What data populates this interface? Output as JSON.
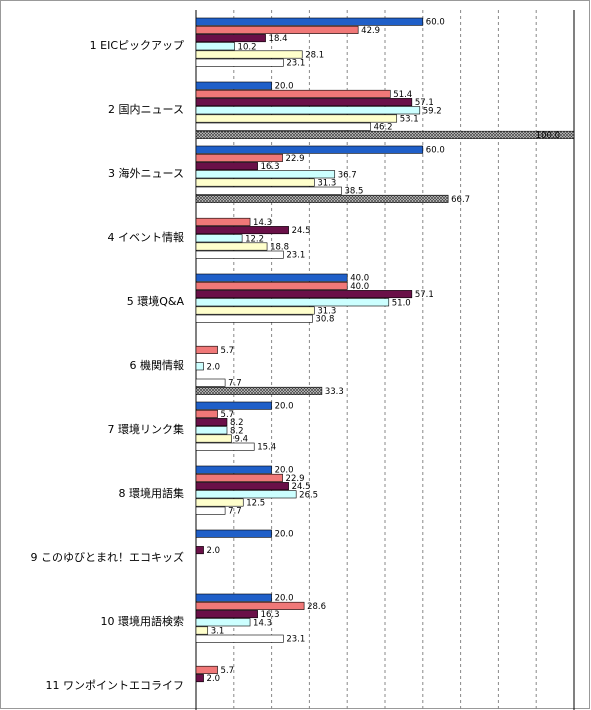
{
  "chart_data": {
    "type": "bar",
    "orientation": "horizontal",
    "categories": [
      "1 EICピックアップ",
      "2 国内ニュース",
      "3 海外ニュース",
      "4 イベント情報",
      "5 環境Q&A",
      "6 機関情報",
      "7 環境リンク集",
      "8 環境用語集",
      "9 このゆびとまれ！エコキッズ",
      "10 環境用語検索",
      "11 ワンポイントエコライフ"
    ],
    "series": [
      {
        "color": "#1f5fc8",
        "values": [
          60.0,
          20.0,
          60.0,
          null,
          40.0,
          null,
          20.0,
          20.0,
          20.0,
          20.0,
          null
        ],
        "value_labels": [
          "60.0",
          "20.0",
          "60.0",
          null,
          "40.0",
          null,
          "20.0",
          "20.0",
          "20.0",
          "20.0",
          null
        ]
      },
      {
        "color": "#f07878",
        "values": [
          42.9,
          51.4,
          22.9,
          14.3,
          40.0,
          5.7,
          5.7,
          22.9,
          null,
          28.6,
          5.7
        ],
        "value_labels": [
          "42.9",
          "51.4",
          "22.9",
          "14.3",
          "40.0",
          "5.7",
          "5.7",
          "22.9",
          null,
          "28.6",
          "5.7"
        ]
      },
      {
        "color": "#6a1048",
        "values": [
          18.4,
          57.1,
          16.3,
          24.5,
          57.1,
          null,
          8.2,
          24.5,
          2.0,
          16.3,
          2.0
        ],
        "value_labels": [
          "18.4",
          "57.1",
          "16.3",
          "24.5",
          "57.1",
          null,
          "8.2",
          "24.5",
          "2.0",
          "16.3",
          "2.0"
        ]
      },
      {
        "color": "#ccffff",
        "values": [
          10.2,
          59.2,
          36.7,
          12.2,
          51.0,
          2.0,
          8.2,
          26.5,
          null,
          14.3,
          null
        ],
        "value_labels": [
          "10.2",
          "59.2",
          "36.7",
          "12.2",
          "51.0",
          "2.0",
          "8.2",
          "26.5",
          null,
          "14.3",
          null
        ]
      },
      {
        "color": "#ffffcc",
        "values": [
          28.1,
          53.1,
          31.3,
          18.8,
          31.3,
          null,
          9.4,
          12.5,
          null,
          3.1,
          null
        ],
        "value_labels": [
          "28.1",
          "53.1",
          "31.3",
          "18.8",
          "31.3",
          null,
          "9.4",
          "12.5",
          null,
          "3.1",
          null
        ]
      },
      {
        "color": "#ffffff",
        "values": [
          23.1,
          46.2,
          38.5,
          23.1,
          30.8,
          7.7,
          15.4,
          7.7,
          null,
          23.1,
          null
        ],
        "value_labels": [
          "23.1",
          "46.2",
          "38.5",
          "23.1",
          "30.8",
          "7.7",
          "15.4",
          "7.7",
          null,
          "23.1",
          null
        ]
      },
      {
        "color": "#909090",
        "hatch": true,
        "values": [
          null,
          100.0,
          66.7,
          null,
          null,
          33.3,
          null,
          null,
          null,
          null,
          null
        ],
        "value_labels": [
          null,
          "100.0",
          "66.7",
          null,
          null,
          "33.3",
          null,
          null,
          null,
          null,
          null
        ]
      }
    ],
    "xlim": [
      0,
      100
    ],
    "xticks": [
      0,
      10,
      20,
      30,
      40,
      50,
      60,
      70,
      80,
      90,
      100
    ],
    "grid": true
  }
}
